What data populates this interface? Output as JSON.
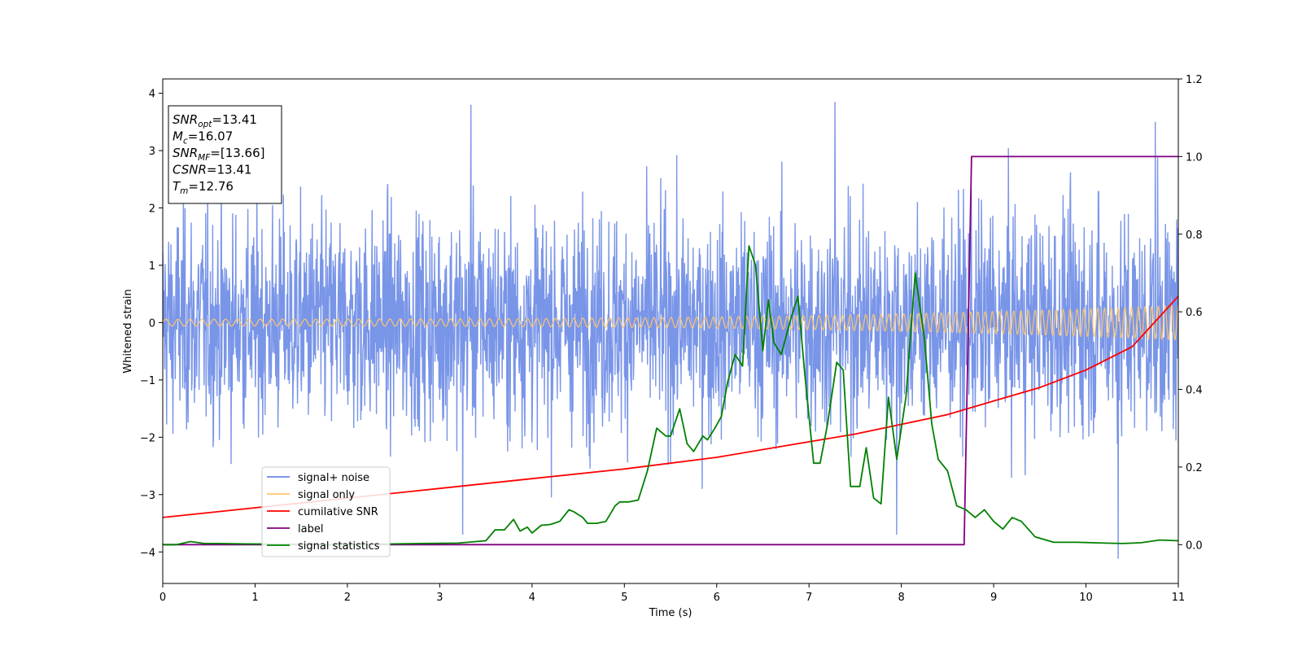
{
  "chart_data": {
    "type": "line",
    "xlabel": "Time (s)",
    "ylabel": "Whitened strain",
    "xlim": [
      0,
      11
    ],
    "ylim": [
      -4.55,
      4.25
    ],
    "y2lim": [
      -0.1,
      1.2
    ],
    "xticks": [
      "0",
      "1",
      "2",
      "3",
      "4",
      "5",
      "6",
      "7",
      "8",
      "9",
      "10",
      "11"
    ],
    "yticks": [
      "−4",
      "−3",
      "−2",
      "−1",
      "0",
      "1",
      "2",
      "3",
      "4"
    ],
    "y2ticks": [
      "0.0",
      "0.2",
      "0.4",
      "0.6",
      "0.8",
      "1.0",
      "1.2"
    ],
    "grid": false,
    "legend_position": "lower-left",
    "annotation": {
      "lines": [
        {
          "base": "SNR",
          "sub": "opt",
          "value": "=13.41"
        },
        {
          "base": "M",
          "sub": "c",
          "value": "=16.07"
        },
        {
          "base": "SNR",
          "sub": "MF",
          "value": "=[13.66]"
        },
        {
          "base": "CSNR",
          "sub": "",
          "value": "=13.41"
        },
        {
          "base": "T",
          "sub": "m",
          "value": "=12.76"
        }
      ]
    },
    "series": [
      {
        "name": "signal+ noise",
        "color": "#6a8ae6",
        "axis": "left",
        "description_kind": "noise",
        "envelope": {
          "typical_abs": 1.4,
          "peak_max": 3.85,
          "peak_min": -4.12
        },
        "peaks": [
          {
            "x": 3.34,
            "y": 3.8
          },
          {
            "x": 7.28,
            "y": 3.85
          },
          {
            "x": 10.75,
            "y": 3.5
          },
          {
            "x": 10.35,
            "y": -4.12
          },
          {
            "x": 3.25,
            "y": -3.7
          },
          {
            "x": 7.95,
            "y": -3.7
          }
        ]
      },
      {
        "name": "signal only",
        "color": "#ffc76b",
        "axis": "left",
        "description_kind": "chirp",
        "amplitude_start": 0.06,
        "amplitude_end": 0.3,
        "cycles_per_second_start": 7.5,
        "cycles_per_second_end": 14
      },
      {
        "name": "cumilative SNR",
        "color": "#ff0000",
        "axis": "right",
        "x": [
          0,
          1,
          2,
          3,
          4,
          5,
          6,
          7,
          7.5,
          8,
          8.5,
          9,
          9.5,
          10,
          10.5,
          11
        ],
        "values": [
          0.07,
          0.095,
          0.12,
          0.145,
          0.17,
          0.195,
          0.225,
          0.265,
          0.285,
          0.31,
          0.335,
          0.37,
          0.405,
          0.45,
          0.51,
          0.64
        ]
      },
      {
        "name": "label",
        "color": "#800080",
        "axis": "right",
        "x": [
          0,
          8.68,
          8.76,
          11
        ],
        "values": [
          0,
          0,
          1,
          1
        ]
      },
      {
        "name": "signal statistics",
        "color": "#008000",
        "axis": "right",
        "x": [
          0,
          0.15,
          0.3,
          0.45,
          0.6,
          0.9,
          1.5,
          2.0,
          2.8,
          3.2,
          3.5,
          3.6,
          3.7,
          3.8,
          3.87,
          3.95,
          4.0,
          4.1,
          4.2,
          4.3,
          4.4,
          4.45,
          4.55,
          4.6,
          4.7,
          4.8,
          4.9,
          4.95,
          5.05,
          5.15,
          5.25,
          5.35,
          5.45,
          5.5,
          5.6,
          5.68,
          5.75,
          5.85,
          5.9,
          5.98,
          6.05,
          6.12,
          6.2,
          6.28,
          6.35,
          6.42,
          6.5,
          6.56,
          6.62,
          6.7,
          6.8,
          6.88,
          6.95,
          7.05,
          7.12,
          7.2,
          7.3,
          7.37,
          7.45,
          7.55,
          7.62,
          7.7,
          7.78,
          7.86,
          7.95,
          8.05,
          8.15,
          8.25,
          8.33,
          8.4,
          8.5,
          8.6,
          8.7,
          8.8,
          8.9,
          9.0,
          9.1,
          9.2,
          9.3,
          9.45,
          9.65,
          9.9,
          10.2,
          10.4,
          10.6,
          10.8,
          11
        ],
        "values": [
          0.0,
          0.0,
          0.008,
          0.003,
          0.003,
          0.002,
          0.001,
          0.0,
          0.003,
          0.004,
          0.01,
          0.038,
          0.038,
          0.065,
          0.035,
          0.045,
          0.03,
          0.05,
          0.052,
          0.06,
          0.09,
          0.085,
          0.07,
          0.055,
          0.055,
          0.06,
          0.1,
          0.11,
          0.11,
          0.115,
          0.19,
          0.3,
          0.28,
          0.28,
          0.35,
          0.26,
          0.24,
          0.28,
          0.27,
          0.3,
          0.33,
          0.42,
          0.49,
          0.46,
          0.77,
          0.72,
          0.5,
          0.63,
          0.52,
          0.49,
          0.58,
          0.64,
          0.45,
          0.21,
          0.21,
          0.31,
          0.47,
          0.45,
          0.15,
          0.15,
          0.25,
          0.12,
          0.105,
          0.38,
          0.22,
          0.38,
          0.7,
          0.53,
          0.31,
          0.22,
          0.19,
          0.1,
          0.09,
          0.07,
          0.09,
          0.06,
          0.04,
          0.07,
          0.06,
          0.02,
          0.006,
          0.006,
          0.004,
          0.003,
          0.005,
          0.012,
          0.01
        ]
      }
    ]
  }
}
